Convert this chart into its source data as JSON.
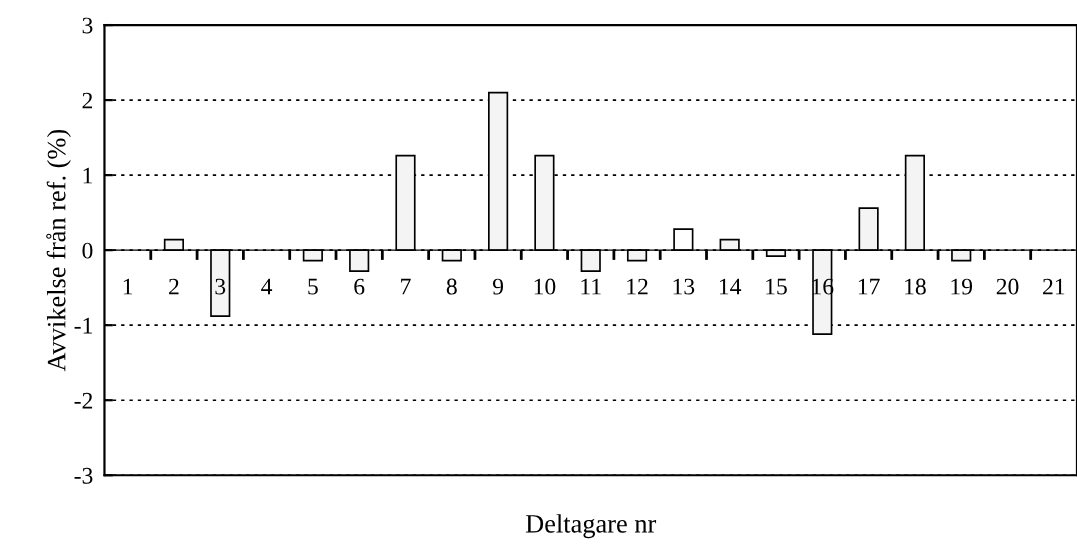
{
  "chart_data": {
    "type": "bar",
    "xlabel": "Deltagare nr",
    "ylabel": "Avvikelse från ref. (%)",
    "categories": [
      "1",
      "2",
      "3",
      "4",
      "5",
      "6",
      "7",
      "8",
      "9",
      "10",
      "11",
      "12",
      "13",
      "14",
      "15",
      "16",
      "17",
      "18",
      "19",
      "20",
      "21"
    ],
    "values": [
      null,
      0.14,
      -0.88,
      null,
      -0.14,
      -0.28,
      1.26,
      -0.14,
      2.1,
      1.26,
      -0.28,
      -0.14,
      0.28,
      0.14,
      -0.08,
      -1.12,
      0.56,
      1.26,
      -0.14,
      null,
      null
    ],
    "colors": [
      "#f4f4f4",
      "#f4f4f4",
      "#f4f4f4",
      "#f4f4f4",
      "#f4f4f4",
      "#f4f4f4",
      "#f4f4f4",
      "#f4f4f4",
      "#f4f4f4",
      "#f4f4f4",
      "#f4f4f4",
      "#f4f4f4",
      "#ffffff",
      "#f4f4f4",
      "#f4f4f4",
      "#f4f4f4",
      "#f4f4f4",
      "#f4f4f4",
      "#f4f4f4",
      "#f4f4f4",
      "#f4f4f4"
    ],
    "ylim": [
      -3,
      3
    ],
    "yticks": [
      -3,
      -2,
      -1,
      0,
      1,
      2,
      3
    ],
    "grid": "y",
    "line_style": "dotted"
  }
}
